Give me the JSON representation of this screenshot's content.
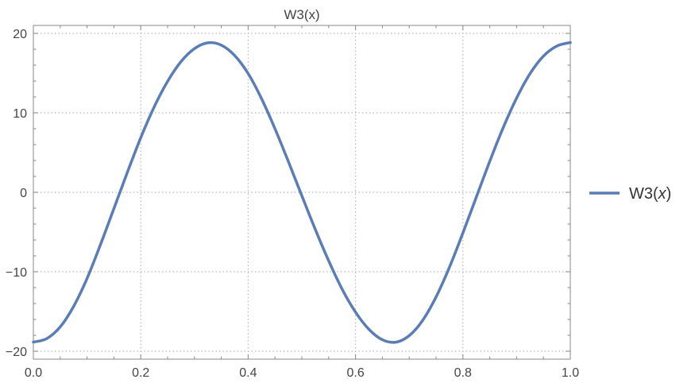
{
  "chart_data": {
    "type": "line",
    "title": "W3(x)",
    "xlabel": "",
    "ylabel": "",
    "xlim": [
      0.0,
      1.0
    ],
    "ylim": [
      -21,
      21
    ],
    "grid": true,
    "legend_position": "right",
    "x_ticks": [
      "0.0",
      "0.2",
      "0.4",
      "0.6",
      "0.8",
      "1.0"
    ],
    "x_tick_values": [
      0.0,
      0.2,
      0.4,
      0.6,
      0.8,
      1.0
    ],
    "y_ticks": [
      "20",
      "10",
      "0",
      "−10",
      "−20"
    ],
    "y_tick_values": [
      20,
      10,
      0,
      -10,
      -20
    ],
    "series": [
      {
        "name": "W3(x)",
        "legend_main": "W3(",
        "legend_var": "x",
        "legend_close": ")",
        "color": "#5b7db5",
        "x": [
          0.0,
          0.025,
          0.05,
          0.075,
          0.1,
          0.125,
          0.15,
          0.175,
          0.2,
          0.225,
          0.25,
          0.275,
          0.3,
          0.325,
          0.35,
          0.375,
          0.4,
          0.425,
          0.45,
          0.475,
          0.5,
          0.525,
          0.55,
          0.575,
          0.6,
          0.625,
          0.65,
          0.675,
          0.7,
          0.725,
          0.75,
          0.775,
          0.8,
          0.825,
          0.85,
          0.875,
          0.9,
          0.925,
          0.95,
          0.975,
          1.0
        ],
        "y": [
          -18.85,
          -18.41,
          -16.94,
          -14.36,
          -10.84,
          -6.58,
          -2.05,
          2.5,
          6.87,
          10.74,
          13.96,
          16.45,
          18.08,
          18.81,
          18.52,
          17.21,
          14.95,
          11.78,
          8.0,
          3.86,
          -0.43,
          -4.66,
          -8.62,
          -12.18,
          -15.08,
          -17.25,
          -18.56,
          -18.86,
          -18.04,
          -16.12,
          -13.17,
          -9.42,
          -5.11,
          -0.6,
          3.9,
          8.13,
          11.86,
          14.93,
          17.14,
          18.41,
          18.85
        ]
      }
    ]
  }
}
